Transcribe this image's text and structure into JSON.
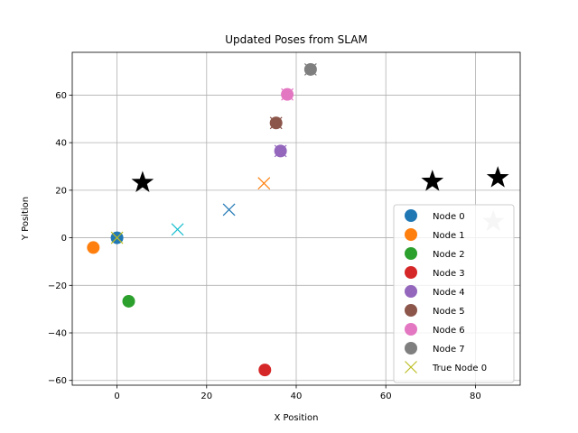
{
  "chart_data": {
    "type": "scatter",
    "title": "Updated Poses from SLAM",
    "xlabel": "X Position",
    "ylabel": "Y Position",
    "xlim": [
      -10,
      90
    ],
    "ylim": [
      -62,
      78
    ],
    "xticks": [
      0,
      20,
      40,
      60,
      80
    ],
    "yticks": [
      -60,
      -40,
      -20,
      0,
      20,
      40,
      60
    ],
    "grid": true,
    "legend_position": "lower right",
    "series": [
      {
        "name": "Node 0",
        "color": "#1f77b4",
        "marker": "circle",
        "x": [
          0
        ],
        "y": [
          0
        ]
      },
      {
        "name": "Node 1",
        "color": "#ff7f0e",
        "marker": "circle",
        "x": [
          -5.3
        ],
        "y": [
          -4.1
        ]
      },
      {
        "name": "Node 2",
        "color": "#2ca02c",
        "marker": "circle",
        "x": [
          2.6
        ],
        "y": [
          -26.7
        ]
      },
      {
        "name": "Node 3",
        "color": "#d62728",
        "marker": "circle",
        "x": [
          33.0
        ],
        "y": [
          -55.6
        ]
      },
      {
        "name": "Node 4",
        "color": "#9467bd",
        "marker": "circle",
        "x": [
          36.5
        ],
        "y": [
          36.5
        ]
      },
      {
        "name": "Node 5",
        "color": "#8c564b",
        "marker": "circle",
        "x": [
          35.5
        ],
        "y": [
          48.3
        ]
      },
      {
        "name": "Node 6",
        "color": "#e377c2",
        "marker": "circle",
        "x": [
          38.0
        ],
        "y": [
          60.3
        ]
      },
      {
        "name": "Node 7",
        "color": "#7f7f7f",
        "marker": "circle",
        "x": [
          43.2
        ],
        "y": [
          70.8
        ]
      },
      {
        "name": "True Node 0",
        "color": "#bcbd22",
        "marker": "x",
        "x": [
          0
        ],
        "y": [
          0
        ]
      }
    ],
    "unlabeled_markers": [
      {
        "marker": "x",
        "color": "#ff7f0e",
        "x": 32.8,
        "y": 22.9
      },
      {
        "marker": "x",
        "color": "#17becf",
        "x": 13.5,
        "y": 3.5
      },
      {
        "marker": "x",
        "color": "#1f77b4",
        "x": 25.0,
        "y": 11.8
      },
      {
        "marker": "x",
        "color": "#9467bd",
        "x": 36.5,
        "y": 36.5
      },
      {
        "marker": "x",
        "color": "#8c564b",
        "x": 35.5,
        "y": 48.3
      },
      {
        "marker": "x",
        "color": "#e377c2",
        "x": 38.0,
        "y": 60.3
      },
      {
        "marker": "x",
        "color": "#7f7f7f",
        "x": 43.2,
        "y": 70.8
      },
      {
        "marker": "star",
        "color": "#000000",
        "x": 5.7,
        "y": 23.2
      },
      {
        "marker": "star",
        "color": "#000000",
        "x": 70.4,
        "y": 23.7
      },
      {
        "marker": "star",
        "color": "#000000",
        "x": 85.0,
        "y": 25.2
      },
      {
        "marker": "star",
        "color": "#d3d3d3",
        "x": 84.0,
        "y": 6.8
      }
    ]
  }
}
